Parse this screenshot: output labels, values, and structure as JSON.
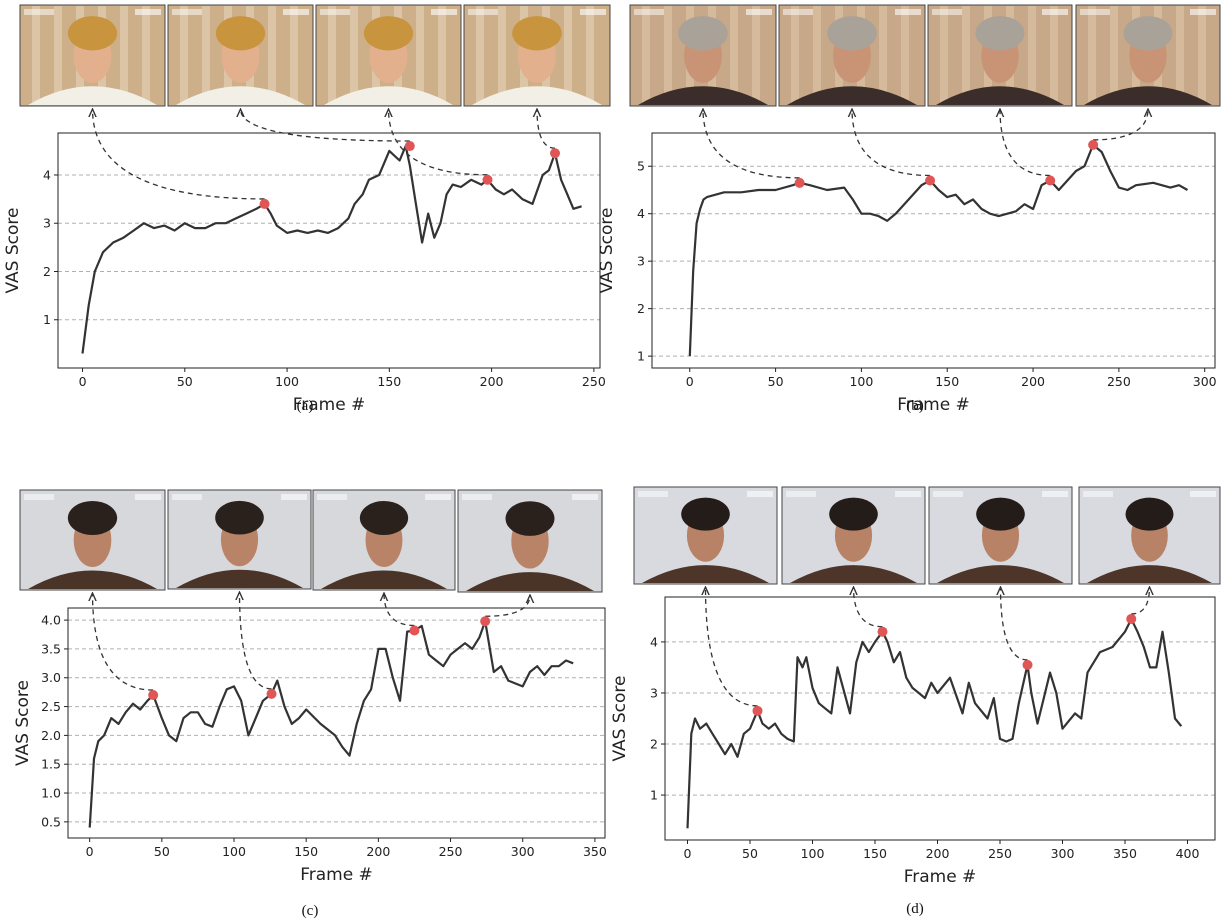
{
  "chart_data": [
    {
      "type": "line",
      "caption": "(a)",
      "x_label": "Frame #",
      "y_label": "VAS Score",
      "xlim": [
        -12,
        253
      ],
      "ylim": [
        0,
        4.87
      ],
      "xticks": [
        0,
        50,
        100,
        150,
        200,
        250
      ],
      "yticks": [
        1,
        2,
        3,
        4
      ],
      "grid": true,
      "color": "#333333",
      "x": [
        0,
        3,
        6,
        10,
        15,
        20,
        25,
        30,
        35,
        40,
        45,
        50,
        55,
        60,
        65,
        70,
        75,
        80,
        85,
        89,
        92,
        95,
        100,
        105,
        110,
        115,
        120,
        125,
        130,
        133,
        137,
        140,
        145,
        150,
        155,
        158,
        160,
        163,
        166,
        169,
        172,
        175,
        178,
        181,
        185,
        190,
        195,
        198,
        202,
        206,
        210,
        215,
        220,
        225,
        228,
        231,
        234,
        237,
        240,
        244
      ],
      "values": [
        0.3,
        1.3,
        2.0,
        2.4,
        2.6,
        2.7,
        2.85,
        3.0,
        2.9,
        2.95,
        2.85,
        3.0,
        2.9,
        2.9,
        3.0,
        3.0,
        3.1,
        3.2,
        3.3,
        3.4,
        3.2,
        2.95,
        2.8,
        2.85,
        2.8,
        2.85,
        2.8,
        2.9,
        3.1,
        3.4,
        3.6,
        3.9,
        4.0,
        4.5,
        4.3,
        4.6,
        4.2,
        3.4,
        2.6,
        3.2,
        2.7,
        3.0,
        3.6,
        3.8,
        3.75,
        3.9,
        3.8,
        3.9,
        3.7,
        3.6,
        3.7,
        3.5,
        3.4,
        4.0,
        4.1,
        4.45,
        3.9,
        3.6,
        3.3,
        3.35
      ],
      "highlights": {
        "color": "#e05555",
        "x": [
          89,
          160,
          198,
          231
        ],
        "values": [
          3.4,
          4.6,
          3.9,
          4.45
        ]
      }
    },
    {
      "type": "line",
      "caption": "(b)",
      "x_label": "Frame #",
      "y_label": "VAS Score",
      "xlim": [
        -22,
        306
      ],
      "ylim": [
        0.75,
        5.7
      ],
      "xticks": [
        0,
        50,
        100,
        150,
        200,
        250,
        300
      ],
      "yticks": [
        1,
        2,
        3,
        4,
        5
      ],
      "grid": true,
      "color": "#333333",
      "x": [
        0,
        2,
        4,
        6,
        8,
        10,
        15,
        20,
        30,
        40,
        50,
        60,
        64,
        70,
        80,
        90,
        95,
        100,
        105,
        110,
        115,
        120,
        125,
        130,
        135,
        140,
        145,
        150,
        155,
        160,
        165,
        170,
        175,
        180,
        185,
        190,
        195,
        200,
        205,
        210,
        215,
        220,
        225,
        230,
        235,
        240,
        245,
        250,
        255,
        260,
        270,
        280,
        285,
        290
      ],
      "values": [
        1.0,
        2.8,
        3.8,
        4.1,
        4.3,
        4.35,
        4.4,
        4.45,
        4.45,
        4.5,
        4.5,
        4.6,
        4.65,
        4.6,
        4.5,
        4.55,
        4.3,
        4.0,
        4.0,
        3.95,
        3.85,
        4.0,
        4.2,
        4.4,
        4.6,
        4.7,
        4.5,
        4.35,
        4.4,
        4.2,
        4.3,
        4.1,
        4.0,
        3.95,
        4.0,
        4.05,
        4.2,
        4.1,
        4.6,
        4.7,
        4.5,
        4.7,
        4.9,
        5.0,
        5.45,
        5.3,
        4.9,
        4.55,
        4.5,
        4.6,
        4.65,
        4.55,
        4.6,
        4.5
      ],
      "highlights": {
        "color": "#e05555",
        "x": [
          64,
          140,
          210,
          235
        ],
        "values": [
          4.65,
          4.7,
          4.7,
          5.45
        ]
      }
    },
    {
      "type": "line",
      "caption": "(c)",
      "x_label": "Frame #",
      "y_label": "VAS Score",
      "xlim": [
        -15,
        357
      ],
      "ylim": [
        0.22,
        4.21
      ],
      "xticks": [
        0,
        50,
        100,
        150,
        200,
        250,
        300,
        350
      ],
      "yticks": [
        0.5,
        {
          "value": 1,
          "label": "1.0"
        },
        1.5,
        {
          "value": 2,
          "label": "2.0"
        },
        2.5,
        {
          "value": 3,
          "label": "3.0"
        },
        3.5,
        {
          "value": 4,
          "label": "4.0"
        }
      ],
      "grid": true,
      "color": "#333333",
      "x": [
        0,
        3,
        6,
        10,
        15,
        20,
        25,
        30,
        35,
        40,
        44,
        50,
        55,
        60,
        65,
        70,
        75,
        80,
        85,
        90,
        95,
        100,
        105,
        110,
        115,
        120,
        126,
        130,
        135,
        140,
        145,
        150,
        160,
        170,
        175,
        180,
        185,
        190,
        195,
        200,
        205,
        210,
        215,
        220,
        225,
        230,
        235,
        240,
        245,
        250,
        255,
        260,
        265,
        270,
        274,
        280,
        285,
        290,
        295,
        300,
        305,
        310,
        315,
        320,
        325,
        330,
        335
      ],
      "values": [
        0.4,
        1.6,
        1.9,
        2.0,
        2.3,
        2.2,
        2.4,
        2.55,
        2.45,
        2.6,
        2.7,
        2.3,
        2.0,
        1.9,
        2.3,
        2.4,
        2.4,
        2.2,
        2.15,
        2.5,
        2.8,
        2.85,
        2.6,
        2.0,
        2.3,
        2.6,
        2.72,
        2.95,
        2.5,
        2.2,
        2.3,
        2.45,
        2.2,
        2.0,
        1.8,
        1.65,
        2.2,
        2.6,
        2.8,
        3.5,
        3.5,
        3.0,
        2.6,
        3.8,
        3.82,
        3.9,
        3.4,
        3.3,
        3.2,
        3.4,
        3.5,
        3.6,
        3.5,
        3.7,
        3.98,
        3.1,
        3.2,
        2.95,
        2.9,
        2.85,
        3.1,
        3.2,
        3.05,
        3.2,
        3.2,
        3.3,
        3.25
      ],
      "highlights": {
        "color": "#e05555",
        "x": [
          44,
          126,
          225,
          274
        ],
        "values": [
          2.7,
          2.72,
          3.82,
          3.98
        ]
      }
    },
    {
      "type": "line",
      "caption": "(d)",
      "x_label": "Frame #",
      "y_label": "VAS Score",
      "xlim": [
        -18,
        422
      ],
      "ylim": [
        0.12,
        4.88
      ],
      "xticks": [
        0,
        50,
        100,
        150,
        200,
        250,
        300,
        350,
        400
      ],
      "yticks": [
        1,
        2,
        3,
        4
      ],
      "grid": true,
      "color": "#333333",
      "x": [
        0,
        3,
        6,
        10,
        15,
        20,
        25,
        30,
        35,
        40,
        45,
        50,
        56,
        60,
        65,
        70,
        75,
        80,
        85,
        88,
        92,
        95,
        100,
        105,
        110,
        115,
        120,
        130,
        135,
        140,
        145,
        150,
        156,
        160,
        165,
        170,
        175,
        180,
        185,
        190,
        195,
        200,
        210,
        220,
        225,
        230,
        240,
        245,
        250,
        255,
        260,
        265,
        272,
        275,
        280,
        285,
        290,
        295,
        300,
        310,
        315,
        320,
        330,
        340,
        350,
        355,
        360,
        365,
        370,
        375,
        380,
        385,
        390,
        395
      ],
      "values": [
        0.35,
        2.2,
        2.5,
        2.3,
        2.4,
        2.2,
        2.0,
        1.8,
        2.0,
        1.75,
        2.2,
        2.3,
        2.65,
        2.4,
        2.3,
        2.4,
        2.2,
        2.1,
        2.05,
        3.7,
        3.5,
        3.7,
        3.1,
        2.8,
        2.7,
        2.6,
        3.5,
        2.6,
        3.6,
        4.0,
        3.8,
        4.0,
        4.2,
        4.0,
        3.6,
        3.8,
        3.3,
        3.1,
        3.0,
        2.9,
        3.2,
        3.0,
        3.3,
        2.6,
        3.2,
        2.8,
        2.5,
        2.9,
        2.1,
        2.05,
        2.1,
        2.8,
        3.55,
        3.0,
        2.4,
        2.9,
        3.4,
        3.0,
        2.3,
        2.6,
        2.5,
        3.4,
        3.8,
        3.9,
        4.2,
        4.45,
        4.2,
        3.9,
        3.5,
        3.5,
        4.2,
        3.4,
        2.5,
        2.35
      ],
      "highlights": {
        "color": "#e05555",
        "x": [
          56,
          156,
          272,
          355
        ],
        "values": [
          2.65,
          4.2,
          3.55,
          4.45
        ]
      }
    }
  ]
}
